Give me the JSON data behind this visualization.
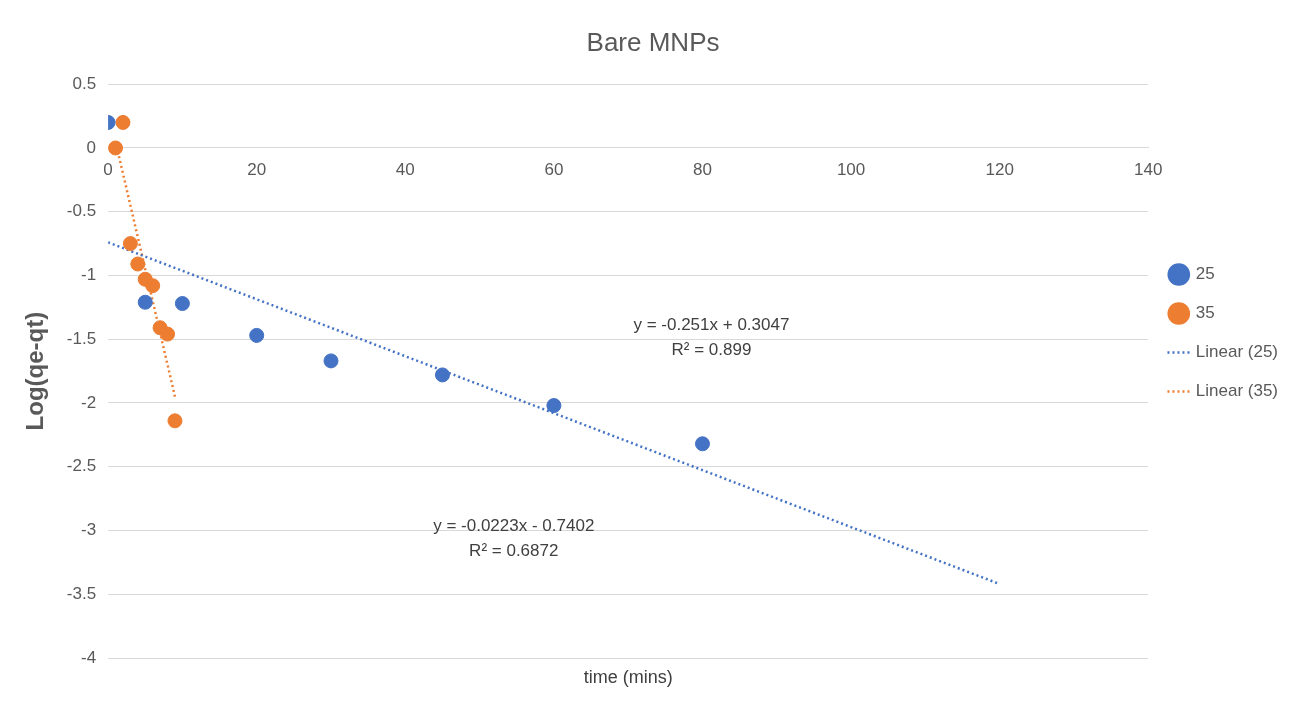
{
  "chart_data": {
    "type": "scatter",
    "title": "Bare MNPs",
    "xlabel": "time (mins)",
    "ylabel": "Log(qe-qt)",
    "xlim": [
      0,
      140
    ],
    "xticks": [
      0,
      20,
      40,
      60,
      80,
      100,
      120,
      140
    ],
    "ylim": [
      -4,
      0.5
    ],
    "yticks": [
      -4,
      -3.5,
      -3,
      -2.5,
      -2,
      -1.5,
      -1,
      -0.5,
      0,
      0.5
    ],
    "grid": "y",
    "legend": "right",
    "marker": "circle",
    "annotations": [
      "y = -0.251x + 0.3047\nR² = 0.899",
      "y = -0.0223x - 0.7402\nR² = 0.6872"
    ],
    "series": [
      {
        "name": "25",
        "color": "#4472c4",
        "x": [
          0,
          5,
          10,
          20,
          30,
          45,
          60,
          80
        ],
        "values": [
          0.2,
          -1.21,
          -1.22,
          -1.47,
          -1.67,
          -1.78,
          -2.02,
          -2.32
        ]
      },
      {
        "name": "35",
        "color": "#ed7d31",
        "x": [
          2,
          1,
          3,
          4,
          5,
          6,
          7,
          8,
          9
        ],
        "values": [
          0.2,
          0,
          -0.75,
          -0.91,
          -1.03,
          -1.08,
          -1.41,
          -1.46,
          -2.14
        ]
      },
      {
        "name": "Linear (25)",
        "type": "line",
        "line_style": "dotted",
        "marker": "none",
        "color": "#4472c4",
        "x": [
          0,
          120
        ],
        "values": [
          -0.74,
          -3.42
        ]
      },
      {
        "name": "Linear (35)",
        "type": "line",
        "line_style": "dotted",
        "marker": "none",
        "color": "#ed7d31",
        "x": [
          1,
          9
        ],
        "values": [
          0.05,
          -1.95
        ]
      }
    ]
  }
}
